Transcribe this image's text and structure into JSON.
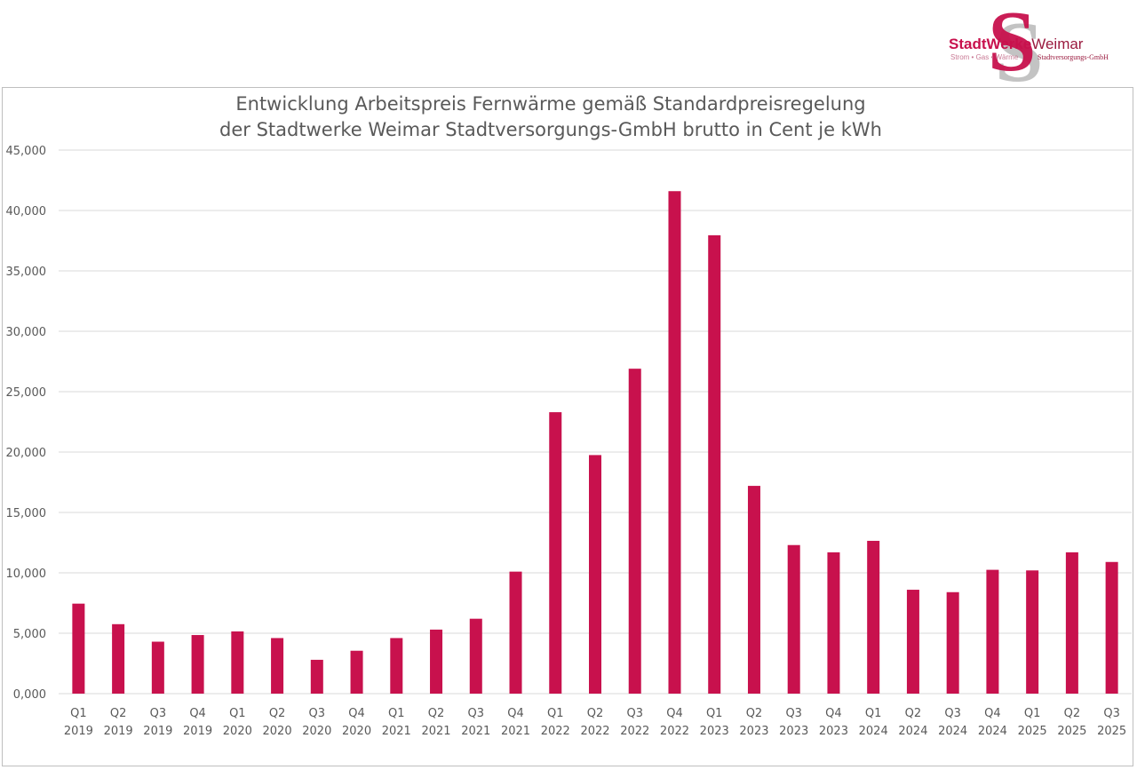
{
  "logo": {
    "name_part1": "StadtWerke",
    "name_part2": "Weimar",
    "tagline": "Strom • Gas • Wärme",
    "subtitle": "Stadtversorgungs-GmbH"
  },
  "chart_data": {
    "type": "bar",
    "title_line1": "Entwicklung Arbeitspreis Fernwärme gemäß Standardpreisregelung",
    "title_line2": "der Stadtwerke Weimar Stadtversorgungs-GmbH brutto in Cent je kWh",
    "categories": [
      {
        "quarter": "Q1",
        "year": "2019"
      },
      {
        "quarter": "Q2",
        "year": "2019"
      },
      {
        "quarter": "Q3",
        "year": "2019"
      },
      {
        "quarter": "Q4",
        "year": "2019"
      },
      {
        "quarter": "Q1",
        "year": "2020"
      },
      {
        "quarter": "Q2",
        "year": "2020"
      },
      {
        "quarter": "Q3",
        "year": "2020"
      },
      {
        "quarter": "Q4",
        "year": "2020"
      },
      {
        "quarter": "Q1",
        "year": "2021"
      },
      {
        "quarter": "Q2",
        "year": "2021"
      },
      {
        "quarter": "Q3",
        "year": "2021"
      },
      {
        "quarter": "Q4",
        "year": "2021"
      },
      {
        "quarter": "Q1",
        "year": "2022"
      },
      {
        "quarter": "Q2",
        "year": "2022"
      },
      {
        "quarter": "Q3",
        "year": "2022"
      },
      {
        "quarter": "Q4",
        "year": "2022"
      },
      {
        "quarter": "Q1",
        "year": "2023"
      },
      {
        "quarter": "Q2",
        "year": "2023"
      },
      {
        "quarter": "Q3",
        "year": "2023"
      },
      {
        "quarter": "Q4",
        "year": "2023"
      },
      {
        "quarter": "Q1",
        "year": "2024"
      },
      {
        "quarter": "Q2",
        "year": "2024"
      },
      {
        "quarter": "Q3",
        "year": "2024"
      },
      {
        "quarter": "Q4",
        "year": "2024"
      },
      {
        "quarter": "Q1",
        "year": "2025"
      },
      {
        "quarter": "Q2",
        "year": "2025"
      },
      {
        "quarter": "Q3",
        "year": "2025"
      }
    ],
    "values": [
      7.45,
      5.75,
      4.3,
      4.85,
      5.15,
      4.6,
      2.8,
      3.55,
      4.6,
      5.3,
      6.2,
      10.1,
      23.3,
      19.75,
      26.9,
      41.6,
      37.95,
      17.2,
      12.3,
      11.7,
      12.65,
      8.6,
      8.4,
      10.25,
      10.2,
      11.7,
      10.9
    ],
    "ylim": [
      0,
      45
    ],
    "yticks": [
      {
        "value": 0,
        "label": "0,000"
      },
      {
        "value": 5,
        "label": "5,000"
      },
      {
        "value": 10,
        "label": "10,000"
      },
      {
        "value": 15,
        "label": "15,000"
      },
      {
        "value": 20,
        "label": "20,000"
      },
      {
        "value": 25,
        "label": "25,000"
      },
      {
        "value": 30,
        "label": "30,000"
      },
      {
        "value": 35,
        "label": "35,000"
      },
      {
        "value": 40,
        "label": "40,000"
      },
      {
        "value": 45,
        "label": "45,000"
      }
    ],
    "grid": true,
    "legend": "none",
    "bar_color": "#c8114d",
    "grid_color": "#d9d9d9"
  }
}
